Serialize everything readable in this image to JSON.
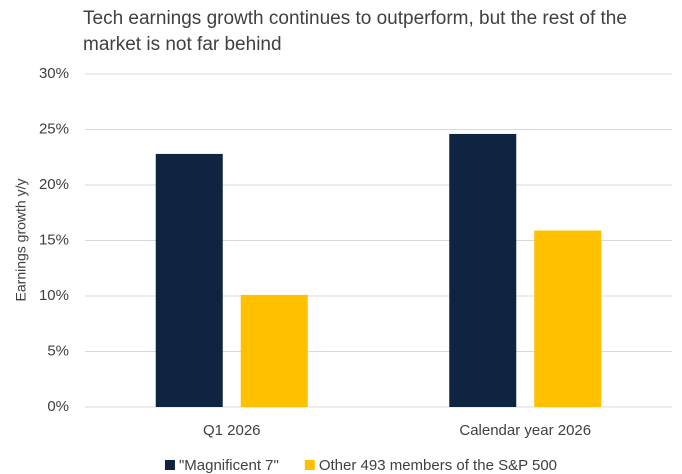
{
  "chart_data": {
    "type": "bar",
    "title": "Tech earnings growth continues to outperform, but the rest of the market is not far behind",
    "ylabel": "Earnings growth y/y",
    "categories": [
      "Q1 2026",
      "Calendar year 2026"
    ],
    "series": [
      {
        "name": "\"Magnificent 7\"",
        "color": "#0e2441",
        "values": [
          22.8,
          24.6
        ]
      },
      {
        "name": "Other 493 members of the S&P 500",
        "color": "#ffc000",
        "values": [
          10.1,
          15.9
        ]
      }
    ],
    "ylim": [
      0,
      30
    ],
    "yticks": [
      {
        "value": 0,
        "label": "0%"
      },
      {
        "value": 5,
        "label": "5%"
      },
      {
        "value": 10,
        "label": "10%"
      },
      {
        "value": 15,
        "label": "15%"
      },
      {
        "value": 20,
        "label": "20%"
      },
      {
        "value": 25,
        "label": "25%"
      },
      {
        "value": 30,
        "label": "30%"
      }
    ],
    "grid": true,
    "legend": "bottom"
  }
}
